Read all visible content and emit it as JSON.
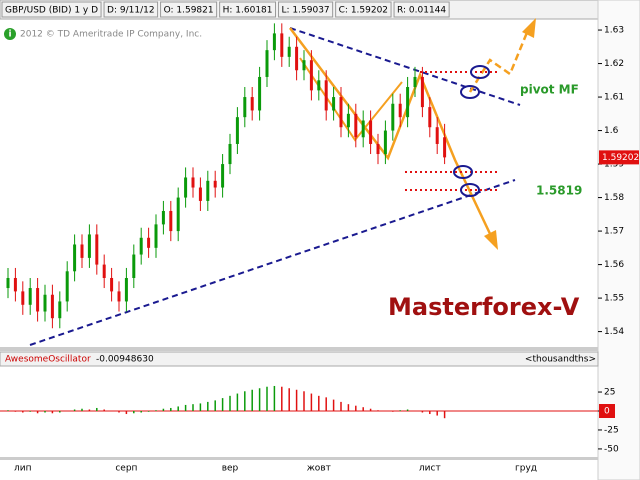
{
  "chart_data": {
    "type": "candlestick",
    "header": [
      "GBP/USD (BID) 1 y D",
      "D: 9/11/12",
      "O: 1.59821",
      "H: 1.60181",
      "L: 1.59037",
      "C: 1.59202",
      "R: 0.01144"
    ],
    "copyright": "2012 © TD Ameritrade IP Company, Inc.",
    "last_price_label": "1.59202",
    "annotations": {
      "pivot": "pivot MF",
      "level": "1.5819",
      "brand": "Masterforex-V"
    },
    "categories": [
      null,
      null,
      "лип",
      null,
      null,
      null,
      null,
      null,
      null,
      null,
      null,
      null,
      null,
      null,
      null,
      null,
      "серп",
      null,
      null,
      null,
      null,
      null,
      null,
      null,
      null,
      null,
      null,
      null,
      null,
      null,
      "вер",
      null,
      null,
      null,
      null,
      null,
      null,
      null,
      null,
      null,
      null,
      null,
      "жовт",
      null,
      null,
      null,
      null,
      null,
      null,
      null,
      null,
      null,
      null,
      null,
      null,
      null,
      null,
      "лист",
      null,
      null,
      null,
      null,
      null,
      null,
      null,
      null,
      null,
      null,
      null,
      null,
      "груд",
      null
    ],
    "open": [
      1.553,
      1.556,
      1.552,
      1.548,
      1.553,
      1.546,
      1.551,
      1.544,
      1.549,
      1.558,
      1.566,
      1.562,
      1.569,
      1.56,
      1.556,
      1.552,
      1.549,
      1.556,
      1.563,
      1.568,
      1.565,
      1.572,
      1.576,
      1.57,
      1.58,
      1.586,
      1.583,
      1.579,
      1.585,
      1.583,
      1.59,
      1.596,
      1.604,
      1.61,
      1.606,
      1.616,
      1.624,
      1.629,
      1.622,
      1.625,
      1.618,
      1.621,
      1.612,
      1.615,
      1.606,
      1.61,
      1.601,
      1.605,
      1.598,
      1.603,
      1.596,
      1.593,
      1.6,
      1.608,
      1.604,
      1.613,
      1.616,
      1.607,
      1.601,
      1.598,
      null,
      null,
      null,
      null,
      null,
      null,
      null,
      null,
      null,
      null,
      null,
      null
    ],
    "high": [
      1.559,
      1.559,
      1.555,
      1.556,
      1.556,
      1.554,
      1.554,
      1.552,
      1.561,
      1.569,
      1.569,
      1.572,
      1.572,
      1.563,
      1.559,
      1.555,
      1.559,
      1.566,
      1.571,
      1.571,
      1.575,
      1.579,
      1.579,
      1.583,
      1.589,
      1.589,
      1.586,
      1.588,
      1.588,
      1.593,
      1.599,
      1.607,
      1.613,
      1.613,
      1.619,
      1.627,
      1.632,
      1.632,
      1.628,
      1.628,
      1.624,
      1.624,
      1.618,
      1.618,
      1.613,
      1.613,
      1.608,
      1.608,
      1.606,
      1.606,
      1.599,
      1.603,
      1.611,
      1.611,
      1.616,
      1.619,
      1.619,
      1.61,
      1.604,
      1.602,
      null,
      null,
      null,
      null,
      null,
      null,
      null,
      null,
      null,
      null,
      null,
      null
    ],
    "low": [
      1.55,
      1.549,
      1.545,
      1.545,
      1.543,
      1.543,
      1.541,
      1.541,
      1.546,
      1.555,
      1.559,
      1.559,
      1.557,
      1.553,
      1.549,
      1.546,
      1.546,
      1.553,
      1.56,
      1.562,
      1.562,
      1.569,
      1.567,
      1.567,
      1.577,
      1.58,
      1.576,
      1.576,
      1.58,
      1.58,
      1.587,
      1.593,
      1.601,
      1.603,
      1.603,
      1.613,
      1.621,
      1.619,
      1.619,
      1.615,
      1.615,
      1.609,
      1.609,
      1.603,
      1.603,
      1.598,
      1.598,
      1.595,
      1.595,
      1.593,
      1.59,
      1.59,
      1.597,
      1.601,
      1.601,
      1.61,
      1.604,
      1.598,
      1.593,
      1.59,
      null,
      null,
      null,
      null,
      null,
      null,
      null,
      null,
      null,
      null,
      null,
      null
    ],
    "close": [
      1.556,
      1.552,
      1.548,
      1.553,
      1.546,
      1.551,
      1.544,
      1.549,
      1.558,
      1.566,
      1.562,
      1.569,
      1.56,
      1.556,
      1.552,
      1.549,
      1.556,
      1.563,
      1.568,
      1.565,
      1.572,
      1.576,
      1.57,
      1.58,
      1.586,
      1.583,
      1.579,
      1.585,
      1.583,
      1.59,
      1.596,
      1.604,
      1.61,
      1.606,
      1.616,
      1.624,
      1.629,
      1.622,
      1.625,
      1.618,
      1.621,
      1.612,
      1.615,
      1.606,
      1.61,
      1.601,
      1.605,
      1.598,
      1.603,
      1.596,
      1.593,
      1.6,
      1.608,
      1.604,
      1.613,
      1.616,
      1.607,
      1.601,
      1.596,
      1.592,
      null,
      null,
      null,
      null,
      null,
      null,
      null,
      null,
      null,
      null,
      null,
      null
    ],
    "up_color": "#0a9a0a",
    "down_color": "#e01010",
    "ylim": [
      1.536,
      1.633
    ],
    "yticks": [
      1.54,
      1.55,
      1.56,
      1.57,
      1.58,
      1.59,
      1.6,
      1.61,
      1.62,
      1.63
    ],
    "oscillator": {
      "name": "AwesomeOscillator",
      "value_label": "-0.0094863",
      "param": "0",
      "units": "<thousandths>",
      "values": [
        1,
        -1,
        -2,
        -1,
        -3,
        -2,
        -3,
        -2,
        0,
        2,
        3,
        2,
        4,
        2,
        0,
        -2,
        -4,
        -3,
        -2,
        -1,
        1,
        3,
        4,
        6,
        8,
        9,
        10,
        12,
        14,
        17,
        20,
        23,
        26,
        28,
        30,
        32,
        33,
        32,
        30,
        28,
        26,
        23,
        20,
        18,
        15,
        12,
        9,
        7,
        5,
        3,
        1,
        0,
        -1,
        1,
        2,
        0,
        -2,
        -4,
        -6,
        -9.5,
        null,
        null,
        null,
        null,
        null,
        null,
        null,
        null,
        null,
        null,
        null,
        null
      ],
      "ylim": [
        -58,
        58
      ],
      "yticks": [
        25,
        0,
        -25,
        -50
      ],
      "zero_color": "#e01010"
    }
  }
}
